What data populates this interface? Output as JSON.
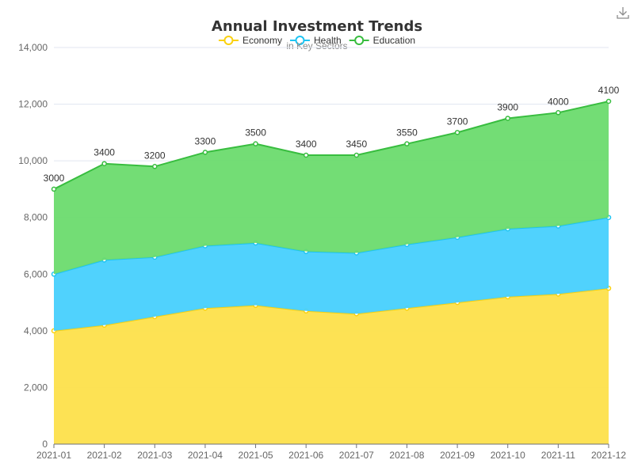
{
  "toolbar": {
    "download_icon": "download-icon"
  },
  "chart_data": {
    "type": "area",
    "stacked": true,
    "title": "Annual Investment Trends",
    "subtitle": "in Key Sectors",
    "categories": [
      "2021-01",
      "2021-02",
      "2021-03",
      "2021-04",
      "2021-05",
      "2021-06",
      "2021-07",
      "2021-08",
      "2021-09",
      "2021-10",
      "2021-11",
      "2021-12"
    ],
    "series": [
      {
        "name": "Economy",
        "color": "#fad10e",
        "fill": "#fde04b",
        "values": [
          4000,
          4200,
          4500,
          4800,
          4900,
          4700,
          4600,
          4800,
          5000,
          5200,
          5300,
          5500
        ]
      },
      {
        "name": "Health",
        "color": "#1ec4f2",
        "fill": "#47d0fd",
        "values": [
          2000,
          2300,
          2100,
          2200,
          2200,
          2100,
          2150,
          2250,
          2300,
          2400,
          2400,
          2500
        ]
      },
      {
        "name": "Education",
        "color": "#38bd3f",
        "fill": "#6cdb6e",
        "values": [
          3000,
          3400,
          3200,
          3300,
          3500,
          3400,
          3450,
          3550,
          3700,
          3900,
          4000,
          4100
        ],
        "show_labels": true
      }
    ],
    "xlabel": "",
    "ylabel": "",
    "ylim": [
      0,
      14000
    ],
    "yticks": [
      0,
      2000,
      4000,
      6000,
      8000,
      10000,
      12000,
      14000
    ],
    "ytick_labels": [
      "0",
      "2,000",
      "4,000",
      "6,000",
      "8,000",
      "10,000",
      "12,000",
      "14,000"
    ],
    "grid": true,
    "legend": "top-center"
  }
}
